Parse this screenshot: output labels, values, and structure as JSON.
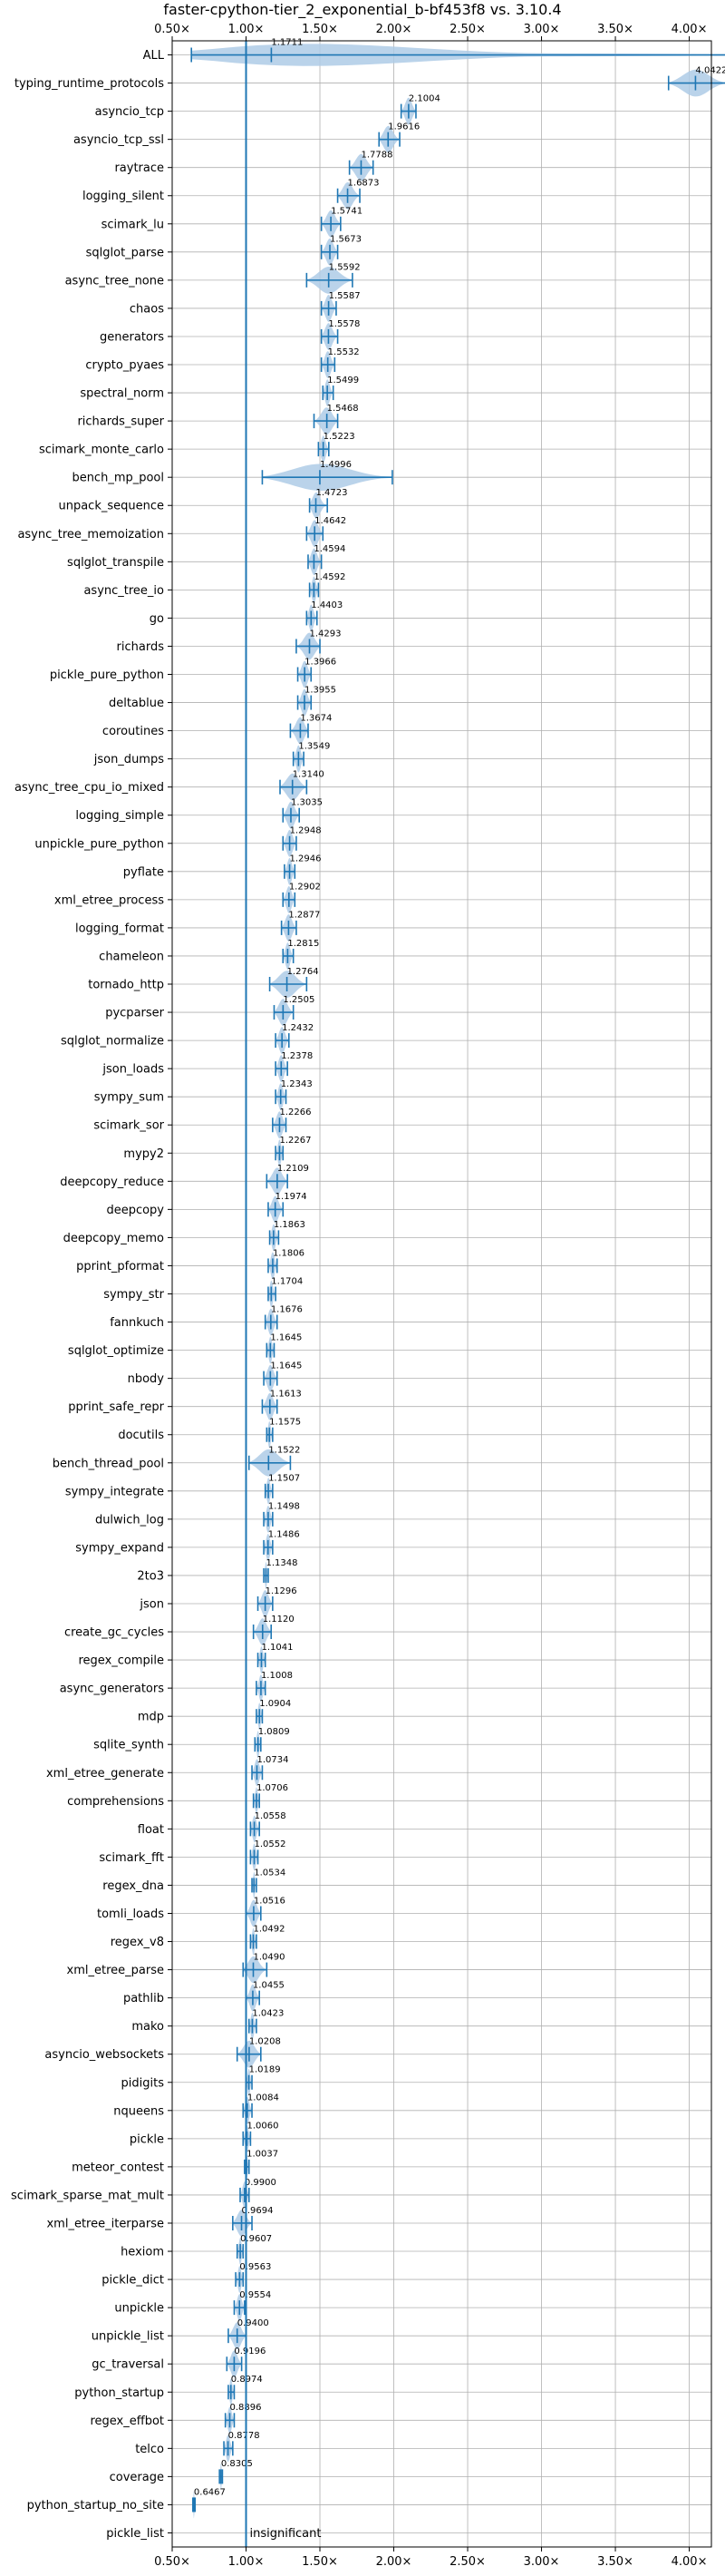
{
  "chart_data": {
    "type": "violin",
    "title": "faster-cpython-tier_2_exponential_b-bf453f8 vs. 3.10.4",
    "xlim": [
      0.5,
      4.15
    ],
    "xticks": [
      "0.50×",
      "1.00×",
      "1.50×",
      "2.00×",
      "2.50×",
      "3.00×",
      "3.50×",
      "4.00×"
    ],
    "xtick_values": [
      0.5,
      1.0,
      1.5,
      2.0,
      2.5,
      3.0,
      3.5,
      4.0
    ],
    "reference_line": 1.0,
    "grid": true,
    "color": "#1f77b4",
    "violin_color": "#aecbe6",
    "insignificant_note": "insignificant",
    "items": [
      {
        "name": "ALL",
        "value": 1.1711,
        "label": "1.1711",
        "lo": 0.63,
        "hi": 4.25
      },
      {
        "name": "typing_runtime_protocols",
        "value": 4.0422,
        "label": "4.0422",
        "lo": 3.86,
        "hi": 4.25
      },
      {
        "name": "asyncio_tcp",
        "value": 2.1004,
        "label": "2.1004",
        "lo": 2.05,
        "hi": 2.15
      },
      {
        "name": "asyncio_tcp_ssl",
        "value": 1.9616,
        "label": "1.9616",
        "lo": 1.9,
        "hi": 2.04
      },
      {
        "name": "raytrace",
        "value": 1.7788,
        "label": "1.7788",
        "lo": 1.7,
        "hi": 1.86
      },
      {
        "name": "logging_silent",
        "value": 1.6873,
        "label": "1.6873",
        "lo": 1.62,
        "hi": 1.77
      },
      {
        "name": "scimark_lu",
        "value": 1.5741,
        "label": "1.5741",
        "lo": 1.51,
        "hi": 1.64
      },
      {
        "name": "sqlglot_parse",
        "value": 1.5673,
        "label": "1.5673",
        "lo": 1.51,
        "hi": 1.62
      },
      {
        "name": "async_tree_none",
        "value": 1.5592,
        "label": "1.5592",
        "lo": 1.41,
        "hi": 1.72
      },
      {
        "name": "chaos",
        "value": 1.5587,
        "label": "1.5587",
        "lo": 1.51,
        "hi": 1.61
      },
      {
        "name": "generators",
        "value": 1.5578,
        "label": "1.5578",
        "lo": 1.51,
        "hi": 1.62
      },
      {
        "name": "crypto_pyaes",
        "value": 1.5532,
        "label": "1.5532",
        "lo": 1.51,
        "hi": 1.6
      },
      {
        "name": "spectral_norm",
        "value": 1.5499,
        "label": "1.5499",
        "lo": 1.52,
        "hi": 1.59
      },
      {
        "name": "richards_super",
        "value": 1.5468,
        "label": "1.5468",
        "lo": 1.46,
        "hi": 1.62
      },
      {
        "name": "scimark_monte_carlo",
        "value": 1.5223,
        "label": "1.5223",
        "lo": 1.49,
        "hi": 1.56
      },
      {
        "name": "bench_mp_pool",
        "value": 1.4996,
        "label": "1.4996",
        "lo": 1.11,
        "hi": 1.99
      },
      {
        "name": "unpack_sequence",
        "value": 1.4723,
        "label": "1.4723",
        "lo": 1.43,
        "hi": 1.55
      },
      {
        "name": "async_tree_memoization",
        "value": 1.4642,
        "label": "1.4642",
        "lo": 1.41,
        "hi": 1.52
      },
      {
        "name": "sqlglot_transpile",
        "value": 1.4594,
        "label": "1.4594",
        "lo": 1.42,
        "hi": 1.51
      },
      {
        "name": "async_tree_io",
        "value": 1.4592,
        "label": "1.4592",
        "lo": 1.43,
        "hi": 1.49
      },
      {
        "name": "go",
        "value": 1.4403,
        "label": "1.4403",
        "lo": 1.41,
        "hi": 1.48
      },
      {
        "name": "richards",
        "value": 1.4293,
        "label": "1.4293",
        "lo": 1.34,
        "hi": 1.5
      },
      {
        "name": "pickle_pure_python",
        "value": 1.3966,
        "label": "1.3966",
        "lo": 1.35,
        "hi": 1.44
      },
      {
        "name": "deltablue",
        "value": 1.3955,
        "label": "1.3955",
        "lo": 1.35,
        "hi": 1.44
      },
      {
        "name": "coroutines",
        "value": 1.3674,
        "label": "1.3674",
        "lo": 1.3,
        "hi": 1.42
      },
      {
        "name": "json_dumps",
        "value": 1.3549,
        "label": "1.3549",
        "lo": 1.32,
        "hi": 1.39
      },
      {
        "name": "async_tree_cpu_io_mixed",
        "value": 1.314,
        "label": "1.3140",
        "lo": 1.23,
        "hi": 1.41
      },
      {
        "name": "logging_simple",
        "value": 1.3035,
        "label": "1.3035",
        "lo": 1.25,
        "hi": 1.36
      },
      {
        "name": "unpickle_pure_python",
        "value": 1.2948,
        "label": "1.2948",
        "lo": 1.25,
        "hi": 1.34
      },
      {
        "name": "pyflate",
        "value": 1.2946,
        "label": "1.2946",
        "lo": 1.26,
        "hi": 1.33
      },
      {
        "name": "xml_etree_process",
        "value": 1.2902,
        "label": "1.2902",
        "lo": 1.25,
        "hi": 1.33
      },
      {
        "name": "logging_format",
        "value": 1.2877,
        "label": "1.2877",
        "lo": 1.24,
        "hi": 1.34
      },
      {
        "name": "chameleon",
        "value": 1.2815,
        "label": "1.2815",
        "lo": 1.25,
        "hi": 1.32
      },
      {
        "name": "tornado_http",
        "value": 1.2764,
        "label": "1.2764",
        "lo": 1.16,
        "hi": 1.41
      },
      {
        "name": "pycparser",
        "value": 1.2505,
        "label": "1.2505",
        "lo": 1.19,
        "hi": 1.32
      },
      {
        "name": "sqlglot_normalize",
        "value": 1.2432,
        "label": "1.2432",
        "lo": 1.2,
        "hi": 1.29
      },
      {
        "name": "json_loads",
        "value": 1.2378,
        "label": "1.2378",
        "lo": 1.2,
        "hi": 1.28
      },
      {
        "name": "sympy_sum",
        "value": 1.2343,
        "label": "1.2343",
        "lo": 1.2,
        "hi": 1.27
      },
      {
        "name": "scimark_sor",
        "value": 1.2266,
        "label": "1.2266",
        "lo": 1.18,
        "hi": 1.27
      },
      {
        "name": "mypy2",
        "value": 1.2267,
        "label": "1.2267",
        "lo": 1.2,
        "hi": 1.25
      },
      {
        "name": "deepcopy_reduce",
        "value": 1.2109,
        "label": "1.2109",
        "lo": 1.14,
        "hi": 1.28
      },
      {
        "name": "deepcopy",
        "value": 1.1974,
        "label": "1.1974",
        "lo": 1.15,
        "hi": 1.25
      },
      {
        "name": "deepcopy_memo",
        "value": 1.1863,
        "label": "1.1863",
        "lo": 1.16,
        "hi": 1.22
      },
      {
        "name": "pprint_pformat",
        "value": 1.1806,
        "label": "1.1806",
        "lo": 1.15,
        "hi": 1.21
      },
      {
        "name": "sympy_str",
        "value": 1.1704,
        "label": "1.1704",
        "lo": 1.15,
        "hi": 1.2
      },
      {
        "name": "fannkuch",
        "value": 1.1676,
        "label": "1.1676",
        "lo": 1.13,
        "hi": 1.21
      },
      {
        "name": "sqlglot_optimize",
        "value": 1.1645,
        "label": "1.1645",
        "lo": 1.14,
        "hi": 1.19
      },
      {
        "name": "nbody",
        "value": 1.1645,
        "label": "1.1645",
        "lo": 1.12,
        "hi": 1.21
      },
      {
        "name": "pprint_safe_repr",
        "value": 1.1613,
        "label": "1.1613",
        "lo": 1.11,
        "hi": 1.21
      },
      {
        "name": "docutils",
        "value": 1.1575,
        "label": "1.1575",
        "lo": 1.14,
        "hi": 1.18
      },
      {
        "name": "bench_thread_pool",
        "value": 1.1522,
        "label": "1.1522",
        "lo": 1.02,
        "hi": 1.3
      },
      {
        "name": "sympy_integrate",
        "value": 1.1507,
        "label": "1.1507",
        "lo": 1.13,
        "hi": 1.18
      },
      {
        "name": "dulwich_log",
        "value": 1.1498,
        "label": "1.1498",
        "lo": 1.12,
        "hi": 1.18
      },
      {
        "name": "sympy_expand",
        "value": 1.1486,
        "label": "1.1486",
        "lo": 1.12,
        "hi": 1.18
      },
      {
        "name": "2to3",
        "value": 1.1348,
        "label": "1.1348",
        "lo": 1.12,
        "hi": 1.15
      },
      {
        "name": "json",
        "value": 1.1296,
        "label": "1.1296",
        "lo": 1.08,
        "hi": 1.18
      },
      {
        "name": "create_gc_cycles",
        "value": 1.112,
        "label": "1.1120",
        "lo": 1.05,
        "hi": 1.17
      },
      {
        "name": "regex_compile",
        "value": 1.1041,
        "label": "1.1041",
        "lo": 1.08,
        "hi": 1.13
      },
      {
        "name": "async_generators",
        "value": 1.1008,
        "label": "1.1008",
        "lo": 1.07,
        "hi": 1.13
      },
      {
        "name": "mdp",
        "value": 1.0904,
        "label": "1.0904",
        "lo": 1.07,
        "hi": 1.11
      },
      {
        "name": "sqlite_synth",
        "value": 1.0809,
        "label": "1.0809",
        "lo": 1.06,
        "hi": 1.1
      },
      {
        "name": "xml_etree_generate",
        "value": 1.0734,
        "label": "1.0734",
        "lo": 1.04,
        "hi": 1.11
      },
      {
        "name": "comprehensions",
        "value": 1.0706,
        "label": "1.0706",
        "lo": 1.05,
        "hi": 1.09
      },
      {
        "name": "float",
        "value": 1.0558,
        "label": "1.0558",
        "lo": 1.03,
        "hi": 1.09
      },
      {
        "name": "scimark_fft",
        "value": 1.0552,
        "label": "1.0552",
        "lo": 1.03,
        "hi": 1.08
      },
      {
        "name": "regex_dna",
        "value": 1.0534,
        "label": "1.0534",
        "lo": 1.04,
        "hi": 1.07
      },
      {
        "name": "tomli_loads",
        "value": 1.0516,
        "label": "1.0516",
        "lo": 1.0,
        "hi": 1.1
      },
      {
        "name": "regex_v8",
        "value": 1.0492,
        "label": "1.0492",
        "lo": 1.03,
        "hi": 1.07
      },
      {
        "name": "xml_etree_parse",
        "value": 1.049,
        "label": "1.0490",
        "lo": 0.98,
        "hi": 1.14
      },
      {
        "name": "pathlib",
        "value": 1.0455,
        "label": "1.0455",
        "lo": 1.0,
        "hi": 1.09
      },
      {
        "name": "mako",
        "value": 1.0423,
        "label": "1.0423",
        "lo": 1.02,
        "hi": 1.07
      },
      {
        "name": "asyncio_websockets",
        "value": 1.0208,
        "label": "1.0208",
        "lo": 0.94,
        "hi": 1.1
      },
      {
        "name": "pidigits",
        "value": 1.0189,
        "label": "1.0189",
        "lo": 1.0,
        "hi": 1.04
      },
      {
        "name": "nqueens",
        "value": 1.0084,
        "label": "1.0084",
        "lo": 0.98,
        "hi": 1.04
      },
      {
        "name": "pickle",
        "value": 1.006,
        "label": "1.0060",
        "lo": 0.98,
        "hi": 1.03
      },
      {
        "name": "meteor_contest",
        "value": 1.0037,
        "label": "1.0037",
        "lo": 0.99,
        "hi": 1.02
      },
      {
        "name": "scimark_sparse_mat_mult",
        "value": 0.99,
        "label": "0.9900",
        "lo": 0.96,
        "hi": 1.02
      },
      {
        "name": "xml_etree_iterparse",
        "value": 0.9694,
        "label": "0.9694",
        "lo": 0.91,
        "hi": 1.04
      },
      {
        "name": "hexiom",
        "value": 0.9607,
        "label": "0.9607",
        "lo": 0.94,
        "hi": 0.98
      },
      {
        "name": "pickle_dict",
        "value": 0.9563,
        "label": "0.9563",
        "lo": 0.93,
        "hi": 0.98
      },
      {
        "name": "unpickle",
        "value": 0.9554,
        "label": "0.9554",
        "lo": 0.92,
        "hi": 0.99
      },
      {
        "name": "unpickle_list",
        "value": 0.94,
        "label": "0.9400",
        "lo": 0.88,
        "hi": 1.0
      },
      {
        "name": "gc_traversal",
        "value": 0.9196,
        "label": "0.9196",
        "lo": 0.87,
        "hi": 0.97
      },
      {
        "name": "python_startup",
        "value": 0.8974,
        "label": "0.8974",
        "lo": 0.88,
        "hi": 0.92
      },
      {
        "name": "regex_effbot",
        "value": 0.8896,
        "label": "0.8896",
        "lo": 0.86,
        "hi": 0.92
      },
      {
        "name": "telco",
        "value": 0.8778,
        "label": "0.8778",
        "lo": 0.85,
        "hi": 0.91
      },
      {
        "name": "coverage",
        "value": 0.8305,
        "label": "0.8305",
        "lo": 0.82,
        "hi": 0.84
      },
      {
        "name": "python_startup_no_site",
        "value": 0.6467,
        "label": "0.6467",
        "lo": 0.64,
        "hi": 0.655
      },
      {
        "name": "pickle_list",
        "value": null,
        "label": "",
        "lo": null,
        "hi": null,
        "insignificant": true
      }
    ]
  }
}
